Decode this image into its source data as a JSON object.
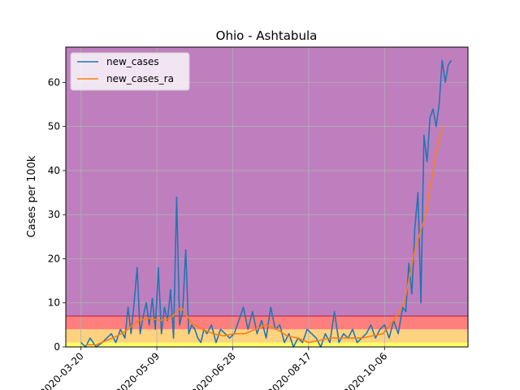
{
  "chart_data": {
    "type": "line",
    "title": "Ohio - Ashtabula",
    "xlabel": "",
    "ylabel": "Cases per 100k",
    "x_start": "2020-03-10",
    "x_end": "2020-11-30",
    "xlim": [
      "2020-03-10",
      "2020-11-30"
    ],
    "ylim": [
      0,
      68
    ],
    "x_ticks": [
      "2020-03-20",
      "2020-05-09",
      "2020-06-28",
      "2020-08-17",
      "2020-10-06"
    ],
    "y_ticks": [
      0,
      10,
      20,
      30,
      40,
      50,
      60
    ],
    "grid": true,
    "legend_position": "top-left",
    "bands": [
      {
        "from": 0,
        "to": 1,
        "color": "#ffff66"
      },
      {
        "from": 1,
        "to": 4,
        "color": "#ffd27f"
      },
      {
        "from": 4,
        "to": 7,
        "color": "#ff7f7f"
      },
      {
        "from": 7,
        "to": 68,
        "color": "#bf7fbf"
      }
    ],
    "threshold_line": 7,
    "series": [
      {
        "name": "new_cases",
        "color": "#1f77b4",
        "x": [
          "2020-03-20",
          "2020-03-23",
          "2020-03-26",
          "2020-03-30",
          "2020-04-03",
          "2020-04-06",
          "2020-04-09",
          "2020-04-12",
          "2020-04-15",
          "2020-04-18",
          "2020-04-20",
          "2020-04-22",
          "2020-04-24",
          "2020-04-26",
          "2020-04-28",
          "2020-04-30",
          "2020-05-02",
          "2020-05-04",
          "2020-05-06",
          "2020-05-08",
          "2020-05-10",
          "2020-05-12",
          "2020-05-14",
          "2020-05-16",
          "2020-05-18",
          "2020-05-20",
          "2020-05-22",
          "2020-05-24",
          "2020-05-26",
          "2020-05-28",
          "2020-05-30",
          "2020-06-01",
          "2020-06-03",
          "2020-06-05",
          "2020-06-07",
          "2020-06-09",
          "2020-06-11",
          "2020-06-14",
          "2020-06-17",
          "2020-06-20",
          "2020-06-23",
          "2020-06-26",
          "2020-06-29",
          "2020-07-02",
          "2020-07-05",
          "2020-07-08",
          "2020-07-11",
          "2020-07-14",
          "2020-07-17",
          "2020-07-20",
          "2020-07-23",
          "2020-07-26",
          "2020-07-29",
          "2020-08-01",
          "2020-08-04",
          "2020-08-07",
          "2020-08-10",
          "2020-08-13",
          "2020-08-16",
          "2020-08-19",
          "2020-08-22",
          "2020-08-25",
          "2020-08-28",
          "2020-08-31",
          "2020-09-03",
          "2020-09-06",
          "2020-09-09",
          "2020-09-12",
          "2020-09-15",
          "2020-09-18",
          "2020-09-21",
          "2020-09-24",
          "2020-09-27",
          "2020-09-30",
          "2020-10-03",
          "2020-10-06",
          "2020-10-09",
          "2020-10-12",
          "2020-10-15",
          "2020-10-18",
          "2020-10-20",
          "2020-10-22",
          "2020-10-24",
          "2020-10-26",
          "2020-10-28",
          "2020-10-30",
          "2020-11-01",
          "2020-11-03",
          "2020-11-05",
          "2020-11-07",
          "2020-11-09",
          "2020-11-11",
          "2020-11-13",
          "2020-11-15",
          "2020-11-17",
          "2020-11-19"
        ],
        "y": [
          1,
          0,
          2,
          0,
          1,
          2,
          3,
          1,
          4,
          2,
          9,
          3,
          10,
          18,
          3,
          7,
          10,
          5,
          11,
          4,
          18,
          3,
          9,
          6,
          13,
          2,
          34,
          5,
          8,
          22,
          3,
          5,
          4,
          2,
          1,
          4,
          3,
          5,
          1,
          4,
          3,
          2,
          3,
          6,
          9,
          4,
          8,
          3,
          6,
          2,
          9,
          4,
          5,
          1,
          3,
          0,
          2,
          1,
          4,
          3,
          2,
          0,
          3,
          1,
          8,
          1,
          3,
          2,
          4,
          1,
          2,
          3,
          5,
          2,
          4,
          5,
          2,
          6,
          3,
          9,
          8,
          19,
          12,
          27,
          35,
          10,
          48,
          42,
          52,
          54,
          50,
          55,
          65,
          60,
          64,
          65
        ]
      },
      {
        "name": "new_cases_ra",
        "color": "#ff7f0e",
        "x": [
          "2020-03-23",
          "2020-03-30",
          "2020-04-06",
          "2020-04-13",
          "2020-04-20",
          "2020-04-27",
          "2020-05-04",
          "2020-05-11",
          "2020-05-18",
          "2020-05-25",
          "2020-06-01",
          "2020-06-08",
          "2020-06-15",
          "2020-06-22",
          "2020-06-29",
          "2020-07-06",
          "2020-07-13",
          "2020-07-20",
          "2020-07-27",
          "2020-08-03",
          "2020-08-10",
          "2020-08-17",
          "2020-08-24",
          "2020-08-31",
          "2020-09-07",
          "2020-09-14",
          "2020-09-21",
          "2020-09-28",
          "2020-10-05",
          "2020-10-12",
          "2020-10-19",
          "2020-10-26",
          "2020-11-02",
          "2020-11-09",
          "2020-11-13"
        ],
        "y": [
          0.5,
          0.5,
          1.5,
          2.5,
          4,
          6,
          6.5,
          6,
          6.5,
          9,
          5.5,
          4,
          3,
          2.5,
          3,
          3,
          4,
          5,
          4,
          2.5,
          2,
          1,
          1.5,
          2,
          2,
          2,
          2,
          2.5,
          3,
          6,
          10,
          22,
          30,
          44,
          50
        ]
      }
    ]
  }
}
